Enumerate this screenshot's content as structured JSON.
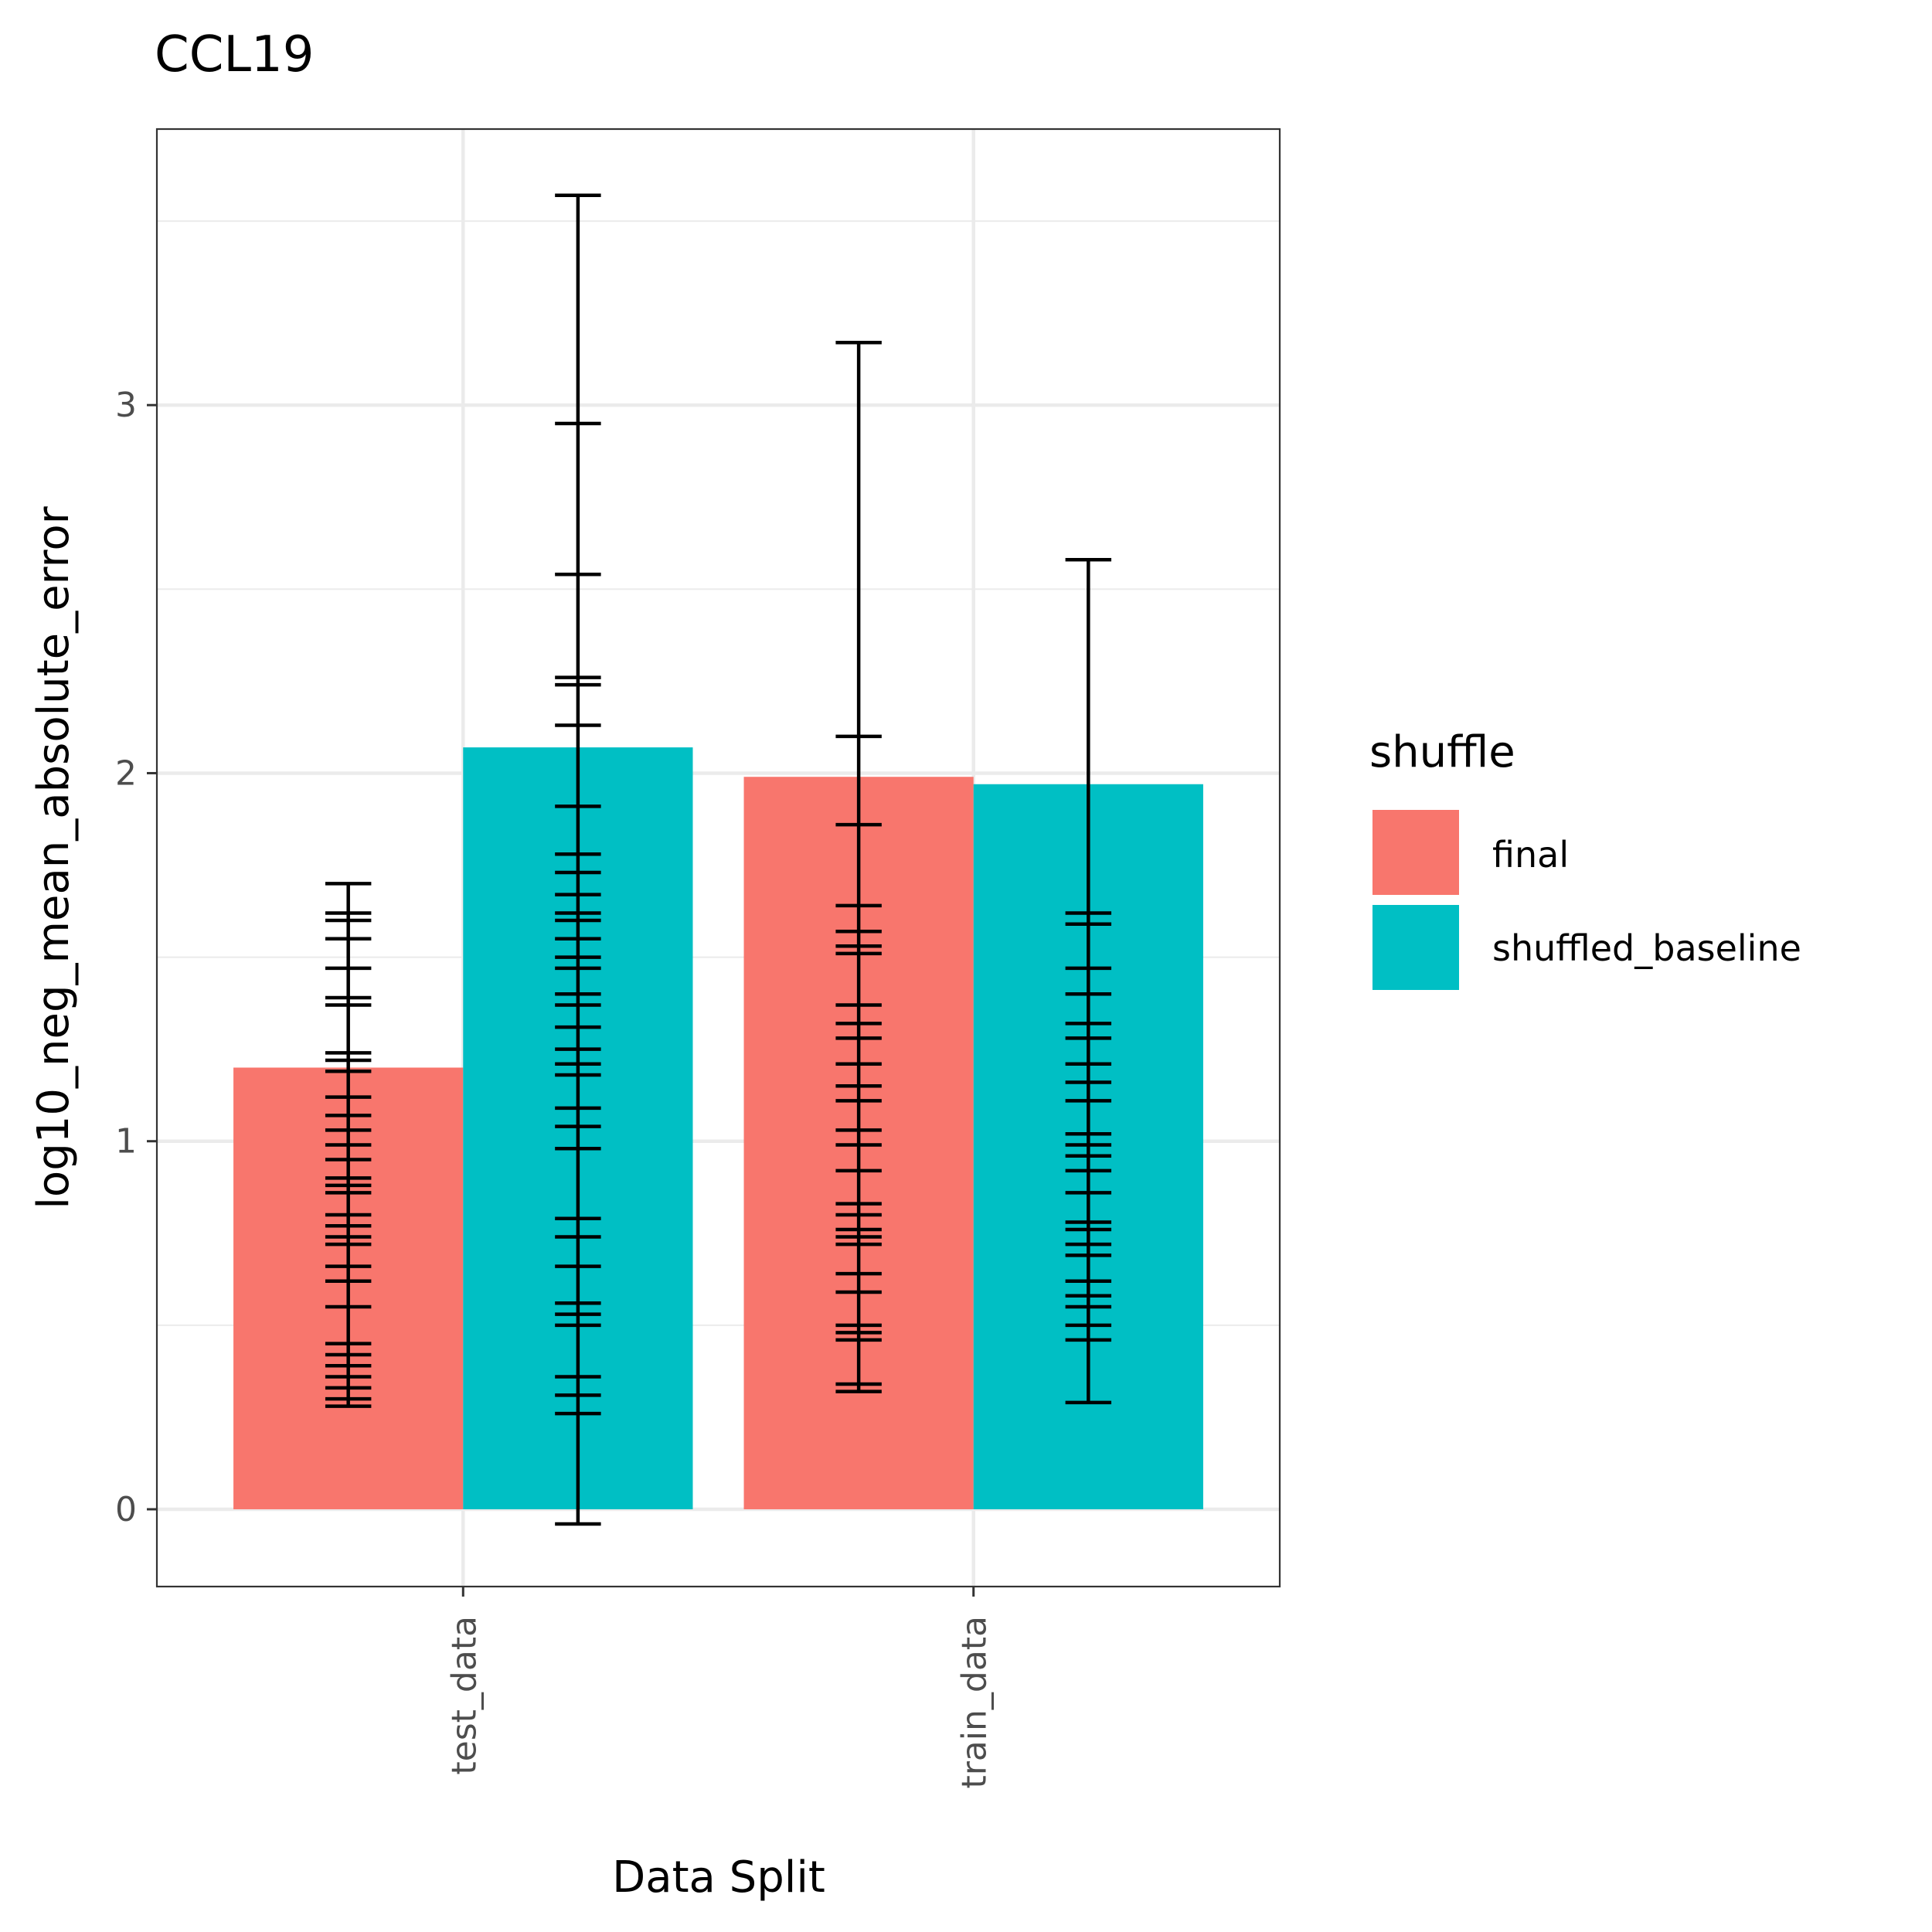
{
  "chart_data": {
    "type": "bar",
    "title": "CCL19",
    "xlabel": "Data Split",
    "ylabel": "log10_neg_mean_absolute_error",
    "categories": [
      "test_data",
      "train_data"
    ],
    "yticks": [
      "0",
      "1",
      "2",
      "3"
    ],
    "ylim": [
      -0.21,
      3.75
    ],
    "grid": true,
    "legend": {
      "title": "shuffle",
      "position": "right"
    },
    "series": [
      {
        "name": "final",
        "color": "#F8766D",
        "values": [
          1.2,
          1.99
        ],
        "error_bars": [
          [
            0.28,
            0.3,
            0.33,
            0.36,
            0.39,
            0.42,
            0.45,
            0.55,
            0.62,
            0.66,
            0.72,
            0.74,
            0.77,
            0.8,
            0.86,
            0.88,
            0.9,
            0.95,
            0.99,
            1.03,
            1.07,
            1.12,
            1.19,
            1.22,
            1.24,
            1.37,
            1.39,
            1.47,
            1.55,
            1.6,
            1.62,
            1.7
          ],
          [
            0.32,
            0.34,
            0.46,
            0.48,
            0.5,
            0.59,
            0.64,
            0.72,
            0.74,
            0.76,
            0.8,
            0.83,
            0.92,
            0.99,
            1.03,
            1.11,
            1.15,
            1.21,
            1.28,
            1.32,
            1.37,
            1.51,
            1.53,
            1.57,
            1.64,
            1.86,
            2.1,
            3.17
          ]
        ]
      },
      {
        "name": "shuffled_baseline",
        "color": "#00BFC4",
        "values": [
          2.07,
          1.97
        ],
        "error_bars": [
          [
            -0.04,
            0.26,
            0.31,
            0.36,
            0.5,
            0.53,
            0.56,
            0.66,
            0.74,
            0.79,
            0.98,
            1.04,
            1.09,
            1.18,
            1.21,
            1.25,
            1.31,
            1.37,
            1.4,
            1.47,
            1.5,
            1.55,
            1.6,
            1.62,
            1.67,
            1.73,
            1.78,
            1.91,
            2.13,
            2.24,
            2.26,
            2.54,
            2.95,
            3.57
          ],
          [
            0.29,
            0.46,
            0.5,
            0.55,
            0.58,
            0.62,
            0.69,
            0.72,
            0.76,
            0.78,
            0.86,
            0.92,
            0.96,
            0.99,
            1.02,
            1.11,
            1.16,
            1.21,
            1.28,
            1.32,
            1.4,
            1.47,
            1.59,
            1.62,
            2.58
          ]
        ]
      }
    ]
  }
}
